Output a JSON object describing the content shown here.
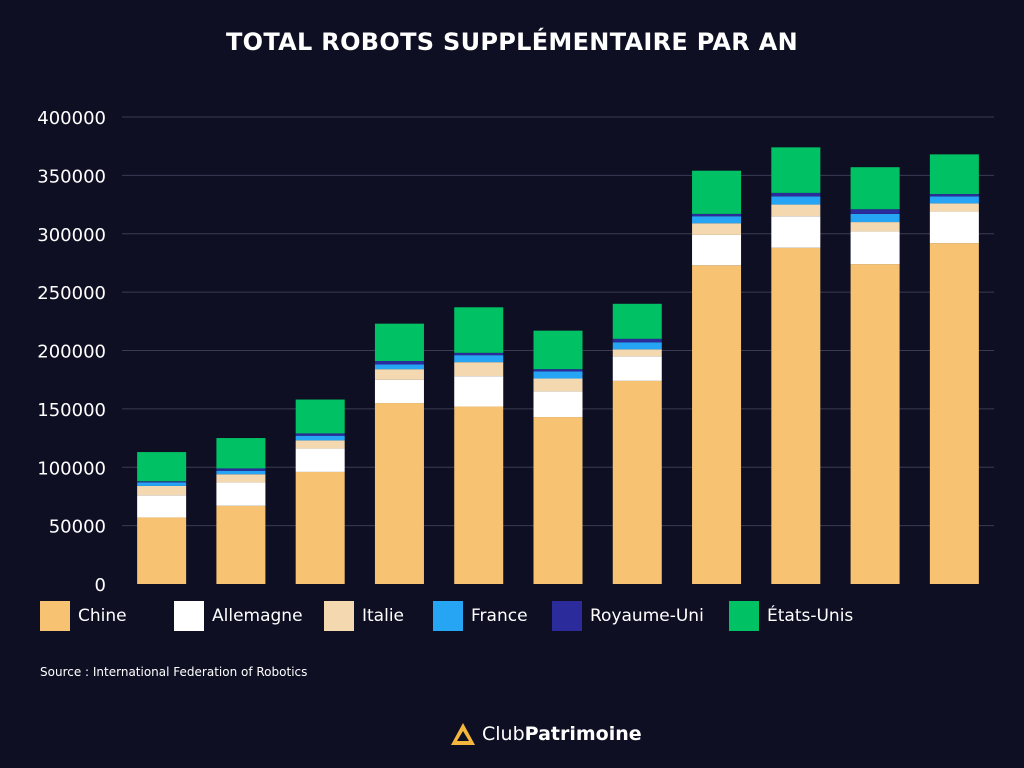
{
  "title": "TOTAL ROBOTS SUPPLÉMENTAIRE PAR AN",
  "source": "Source : International Federation of Robotics",
  "brand": {
    "part1": "Club",
    "part2": "Patrimoine",
    "logo_icon": "triangle-logo-icon"
  },
  "colors": {
    "background": "#0f0f24",
    "grid": "#3a3a52",
    "Chine": "#f7c373",
    "Allemagne": "#ffffff",
    "Italie": "#f4d9b0",
    "France": "#27a5f5",
    "Royaume-Uni": "#2b2b9c",
    "États-Unis": "#00c265",
    "brand_accent": "#f5b63d"
  },
  "chart_data": {
    "type": "bar",
    "stacked": true,
    "title": "TOTAL ROBOTS SUPPLÉMENTAIRE PAR AN",
    "xlabel": "",
    "ylabel": "",
    "ylim": [
      0,
      400000
    ],
    "yticks": [
      0,
      50000,
      100000,
      150000,
      200000,
      250000,
      300000,
      350000,
      400000
    ],
    "grid": true,
    "legend_position": "bottom",
    "categories": [
      "",
      "",
      "",
      "",
      "",
      "",
      "",
      "",
      "",
      "",
      ""
    ],
    "series": [
      {
        "name": "Chine",
        "values": [
          57000,
          67000,
          96000,
          155000,
          152000,
          143000,
          174000,
          273000,
          288000,
          274000,
          292000
        ]
      },
      {
        "name": "Allemagne",
        "values": [
          19000,
          20000,
          20000,
          20000,
          26000,
          22000,
          21000,
          26000,
          27000,
          28000,
          27000
        ]
      },
      {
        "name": "Italie",
        "values": [
          8000,
          7000,
          7000,
          9000,
          12000,
          11000,
          6000,
          10000,
          10000,
          8000,
          7000
        ]
      },
      {
        "name": "France",
        "values": [
          3000,
          3000,
          4000,
          4000,
          6000,
          6000,
          6000,
          6000,
          7000,
          7000,
          6000
        ]
      },
      {
        "name": "Royaume-Uni",
        "values": [
          1000,
          2000,
          2000,
          3000,
          2000,
          2000,
          3000,
          2000,
          3000,
          4000,
          2000
        ]
      },
      {
        "name": "États-Unis",
        "values": [
          25000,
          26000,
          29000,
          32000,
          39000,
          33000,
          30000,
          37000,
          39000,
          36000,
          34000
        ]
      }
    ]
  }
}
